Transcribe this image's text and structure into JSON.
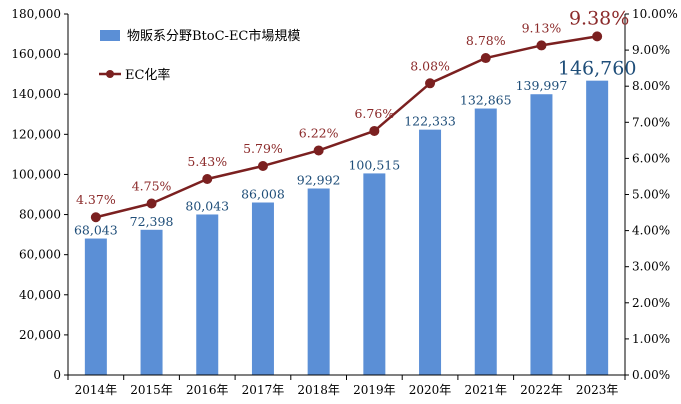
{
  "chart_data": {
    "type": "bar",
    "categories": [
      "2014年",
      "2015年",
      "2016年",
      "2017年",
      "2018年",
      "2019年",
      "2020年",
      "2021年",
      "2022年",
      "2023年"
    ],
    "series": [
      {
        "name": "物販系分野BtoC-EC市場規模",
        "type": "bar",
        "axis": "left",
        "values": [
          68043,
          72398,
          80043,
          86008,
          92992,
          100515,
          122333,
          132865,
          139997,
          146760
        ],
        "labels": [
          "68,043",
          "72,398",
          "80,043",
          "86,008",
          "92,992",
          "100,515",
          "122,333",
          "132,865",
          "139,997",
          "146,760"
        ],
        "color": "#5B8FD6",
        "label_color": "#1F4E79"
      },
      {
        "name": "EC化率",
        "type": "line",
        "axis": "right",
        "values": [
          4.37,
          4.75,
          5.43,
          5.79,
          6.22,
          6.76,
          8.08,
          8.78,
          9.13,
          9.38
        ],
        "labels": [
          "4.37%",
          "4.75%",
          "5.43%",
          "5.79%",
          "6.22%",
          "6.76%",
          "8.08%",
          "8.78%",
          "9.13%",
          "9.38%"
        ],
        "color": "#7B2020",
        "label_color": "#8B2A2A"
      }
    ],
    "y_left": {
      "min": 0,
      "max": 180000,
      "step": 20000,
      "ticks": [
        "0",
        "20,000",
        "40,000",
        "60,000",
        "80,000",
        "100,000",
        "120,000",
        "140,000",
        "160,000",
        "180,000"
      ]
    },
    "y_right": {
      "min": 0,
      "max": 10,
      "step": 1,
      "ticks": [
        "0.00%",
        "1.00%",
        "2.00%",
        "3.00%",
        "4.00%",
        "5.00%",
        "6.00%",
        "7.00%",
        "8.00%",
        "9.00%",
        "10.00%"
      ]
    },
    "grid": false,
    "legend_position": "top-left",
    "title": "",
    "xlabel": "",
    "ylabel": ""
  }
}
